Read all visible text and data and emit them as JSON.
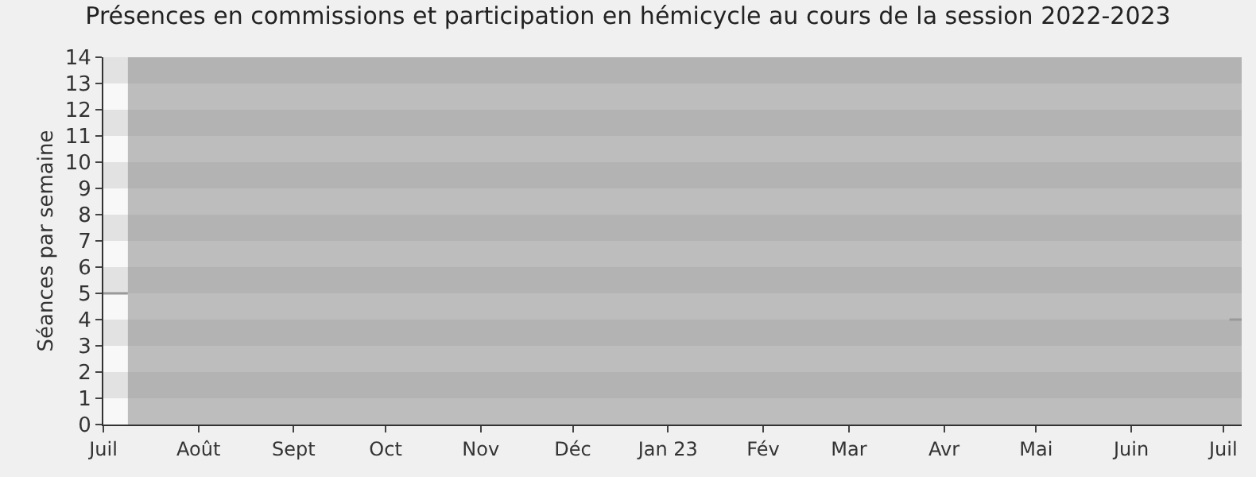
{
  "chart_data": {
    "type": "line",
    "title": "Présences en commissions et participation en hémicycle au cours de la session 2022-2023",
    "ylabel": "Séances par semaine",
    "x": [
      "2022-07-01",
      "2022-07-09",
      "2022-07-10",
      "2023-07-03",
      "2023-07-07"
    ],
    "series": [
      {
        "color": "#999999",
        "values": [
          5,
          5,
          null,
          4,
          4
        ]
      }
    ],
    "xlim": [
      "2022-07-01",
      "2023-07-07"
    ],
    "xticks": [
      {
        "value": "2022-07-01",
        "label": "Juil"
      },
      {
        "value": "2022-08-01",
        "label": "Août"
      },
      {
        "value": "2022-09-01",
        "label": "Sept"
      },
      {
        "value": "2022-10-01",
        "label": "Oct"
      },
      {
        "value": "2022-11-01",
        "label": "Nov"
      },
      {
        "value": "2022-12-01",
        "label": "Déc"
      },
      {
        "value": "2023-01-01",
        "label": "Jan 23"
      },
      {
        "value": "2023-02-01",
        "label": "Fév"
      },
      {
        "value": "2023-03-01",
        "label": "Mar"
      },
      {
        "value": "2023-04-01",
        "label": "Avr"
      },
      {
        "value": "2023-05-01",
        "label": "Mai"
      },
      {
        "value": "2023-06-01",
        "label": "Juin"
      },
      {
        "value": "2023-07-01",
        "label": "Juil"
      }
    ],
    "ylim": [
      0,
      14
    ],
    "yticks": [
      0,
      1,
      2,
      3,
      4,
      5,
      6,
      7,
      8,
      9,
      10,
      11,
      12,
      13,
      14
    ],
    "bands": [
      {
        "axis": "x",
        "from": "2022-07-09",
        "to": "2023-07-07",
        "color": "#8a8a8a"
      }
    ],
    "marker": "none",
    "line_style": "solid"
  }
}
